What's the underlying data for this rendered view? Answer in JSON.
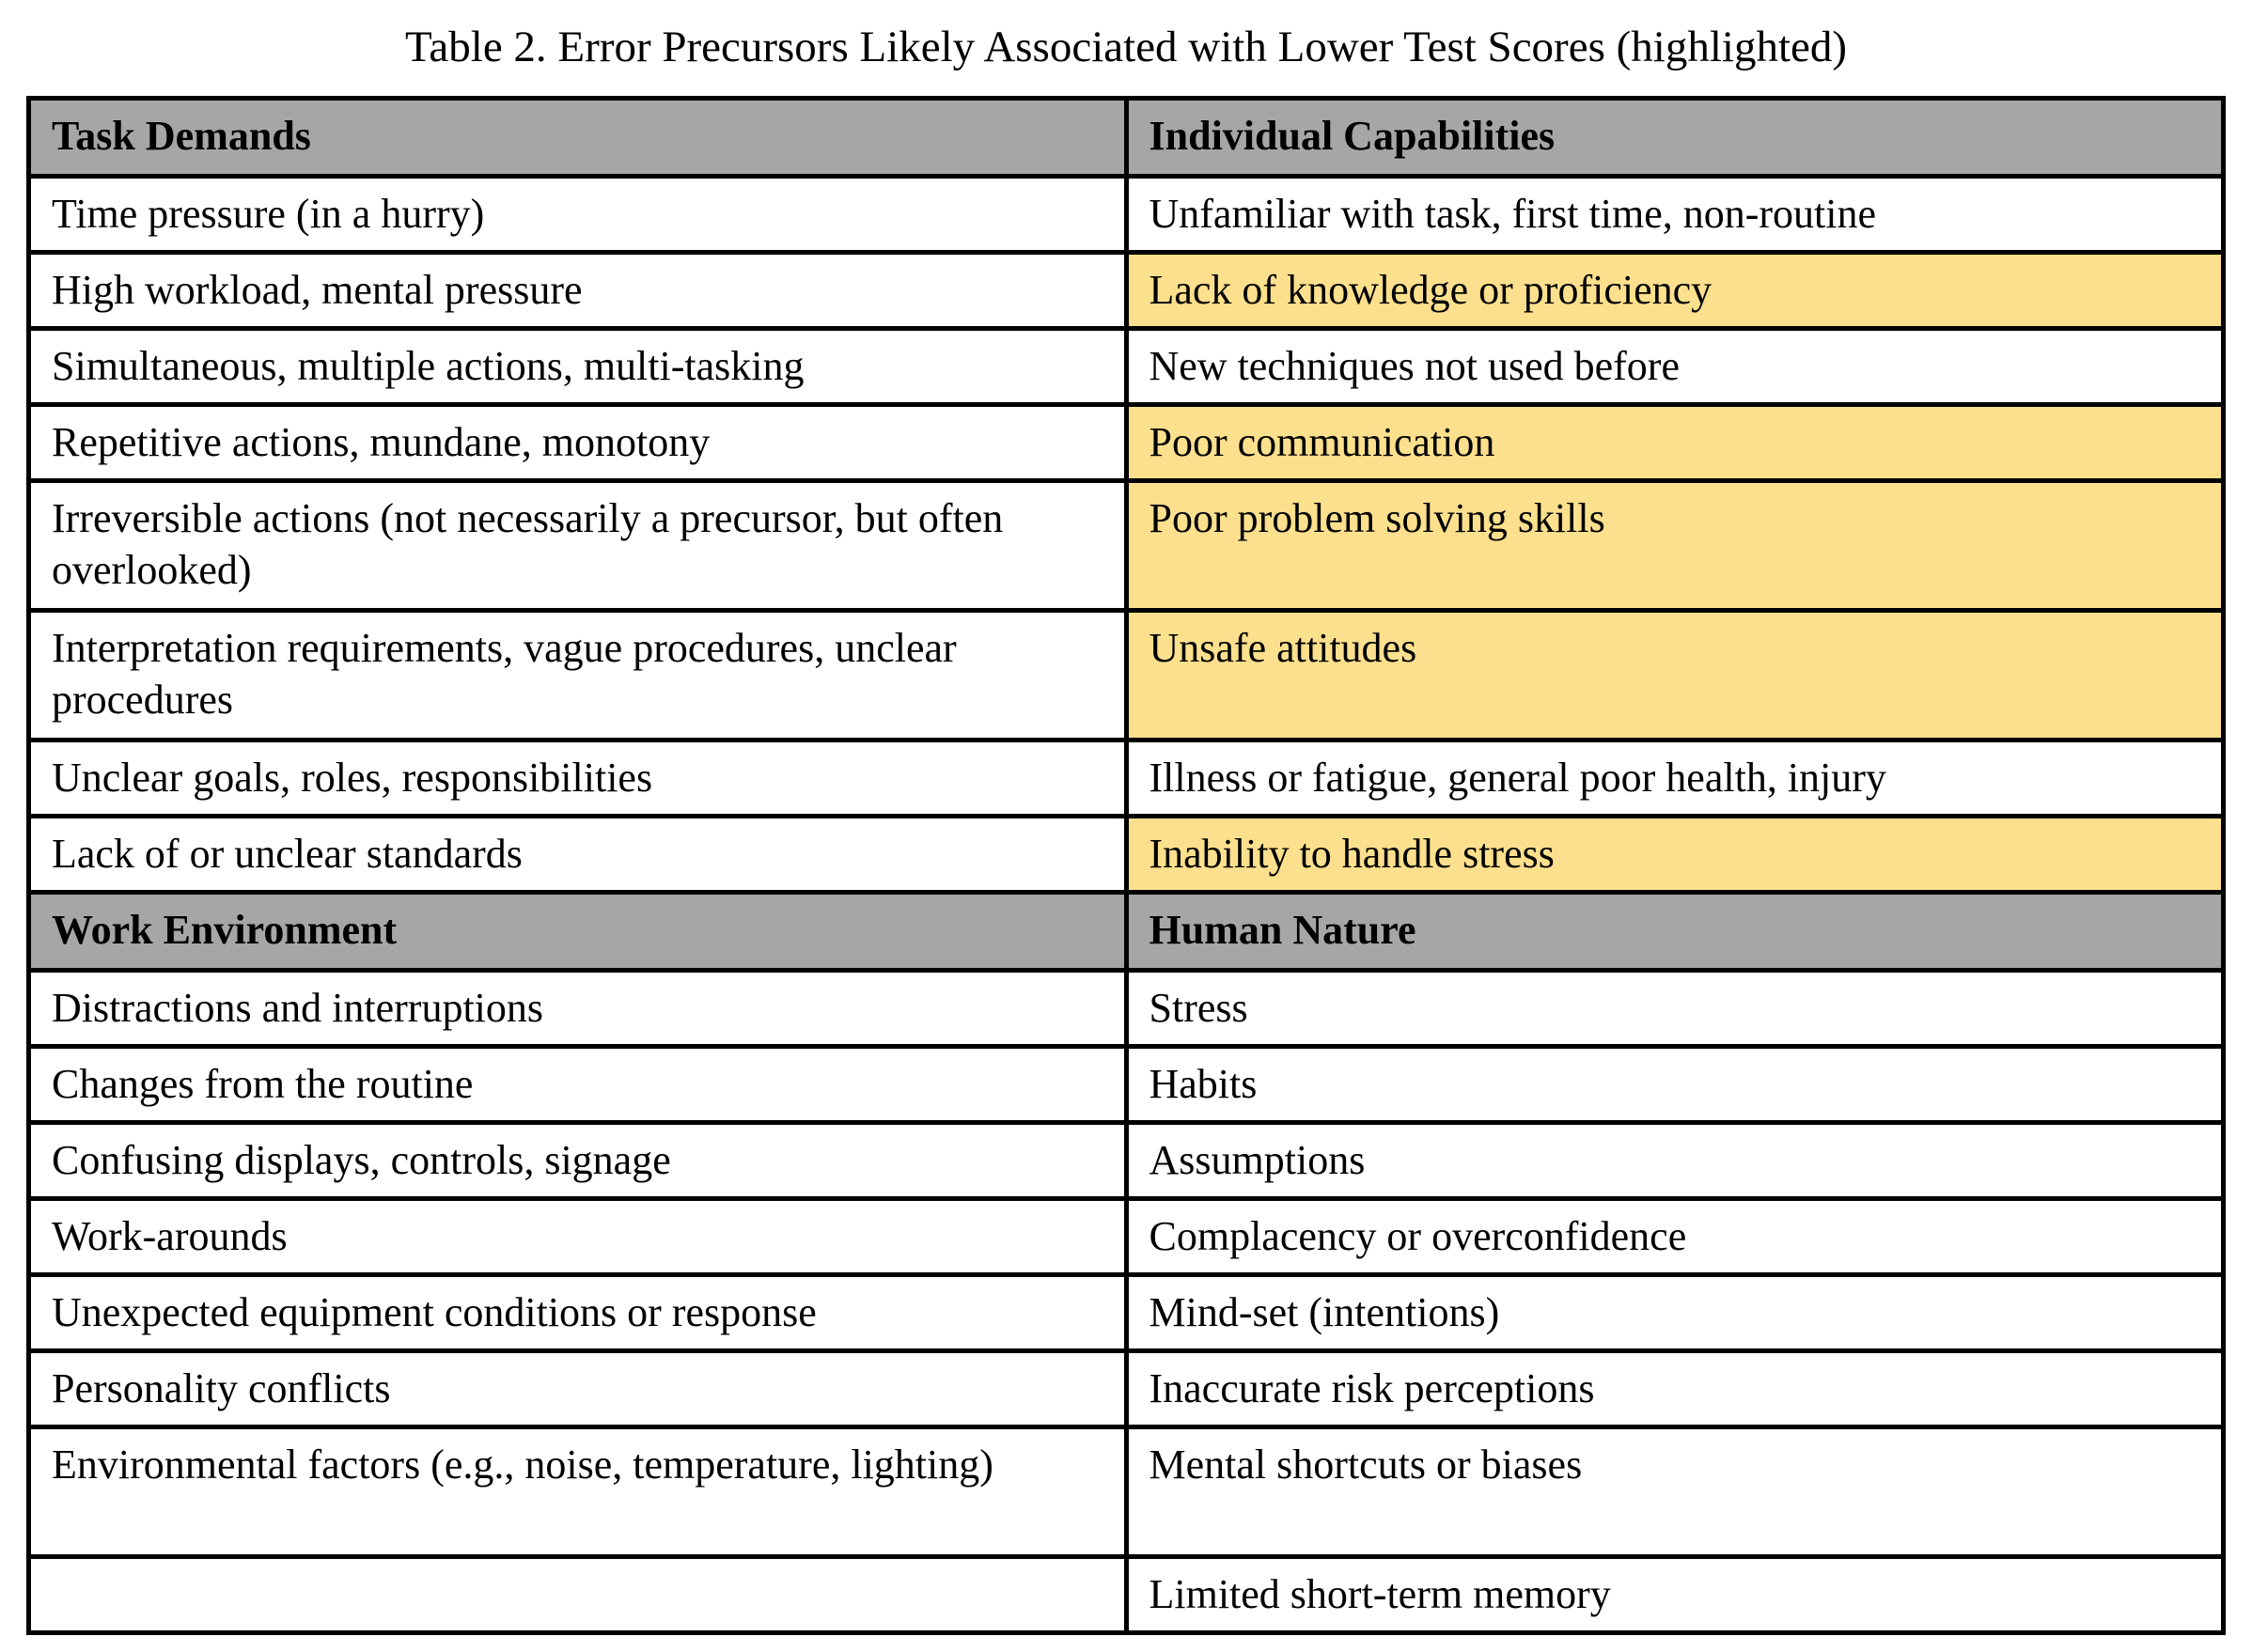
{
  "title": "Table 2. Error Precursors Likely Associated with Lower Test Scores (highlighted)",
  "colors": {
    "header_bg": "#A6A6A6",
    "highlight_bg": "#FDE08D",
    "border": "#000000",
    "text": "#000000",
    "page_bg": "#FFFFFF"
  },
  "sections": [
    {
      "headers": [
        "Task Demands",
        "Individual Capabilities"
      ],
      "rows": [
        {
          "tall": false,
          "left": {
            "text": "Time pressure (in a hurry)",
            "highlight": false
          },
          "right": {
            "text": "Unfamiliar with task, first time, non-routine",
            "highlight": false
          }
        },
        {
          "tall": false,
          "left": {
            "text": "High workload, mental pressure",
            "highlight": false
          },
          "right": {
            "text": "Lack of knowledge or proficiency",
            "highlight": true
          }
        },
        {
          "tall": false,
          "left": {
            "text": "Simultaneous, multiple actions, multi-tasking",
            "highlight": false
          },
          "right": {
            "text": "New techniques not used before",
            "highlight": false
          }
        },
        {
          "tall": false,
          "left": {
            "text": "Repetitive actions, mundane, monotony",
            "highlight": false
          },
          "right": {
            "text": "Poor communication",
            "highlight": true
          }
        },
        {
          "tall": true,
          "left": {
            "text": "Irreversible actions (not necessarily a precursor, but often overlooked)",
            "highlight": false
          },
          "right": {
            "text": "Poor problem solving skills",
            "highlight": true
          }
        },
        {
          "tall": true,
          "left": {
            "text": "Interpretation requirements, vague procedures, unclear procedures",
            "highlight": false
          },
          "right": {
            "text": "Unsafe attitudes",
            "highlight": true
          }
        },
        {
          "tall": false,
          "left": {
            "text": "Unclear goals, roles, responsibilities",
            "highlight": false
          },
          "right": {
            "text": "Illness or fatigue, general poor health, injury",
            "highlight": false
          }
        },
        {
          "tall": false,
          "left": {
            "text": "Lack of or unclear standards",
            "highlight": false
          },
          "right": {
            "text": "Inability to handle stress",
            "highlight": true
          }
        }
      ]
    },
    {
      "headers": [
        "Work Environment",
        "Human Nature"
      ],
      "rows": [
        {
          "tall": false,
          "left": {
            "text": "Distractions and interruptions",
            "highlight": false
          },
          "right": {
            "text": "Stress",
            "highlight": false
          }
        },
        {
          "tall": false,
          "left": {
            "text": "Changes from the routine",
            "highlight": false
          },
          "right": {
            "text": "Habits",
            "highlight": false
          }
        },
        {
          "tall": false,
          "left": {
            "text": "Confusing displays, controls, signage",
            "highlight": false
          },
          "right": {
            "text": "Assumptions",
            "highlight": false
          }
        },
        {
          "tall": false,
          "left": {
            "text": "Work-arounds",
            "highlight": false
          },
          "right": {
            "text": "Complacency or overconfidence",
            "highlight": false
          }
        },
        {
          "tall": false,
          "left": {
            "text": "Unexpected equipment conditions or response",
            "highlight": false
          },
          "right": {
            "text": "Mind-set (intentions)",
            "highlight": false
          }
        },
        {
          "tall": false,
          "left": {
            "text": "Personality conflicts",
            "highlight": false
          },
          "right": {
            "text": "Inaccurate risk perceptions",
            "highlight": false
          }
        },
        {
          "tall": true,
          "left": {
            "text": "Environmental factors (e.g., noise, temperature, lighting)",
            "highlight": false
          },
          "right": {
            "text": "Mental shortcuts or biases",
            "highlight": false
          }
        },
        {
          "tall": false,
          "left": {
            "text": "",
            "highlight": false
          },
          "right": {
            "text": "Limited short-term memory",
            "highlight": false
          }
        }
      ]
    }
  ]
}
